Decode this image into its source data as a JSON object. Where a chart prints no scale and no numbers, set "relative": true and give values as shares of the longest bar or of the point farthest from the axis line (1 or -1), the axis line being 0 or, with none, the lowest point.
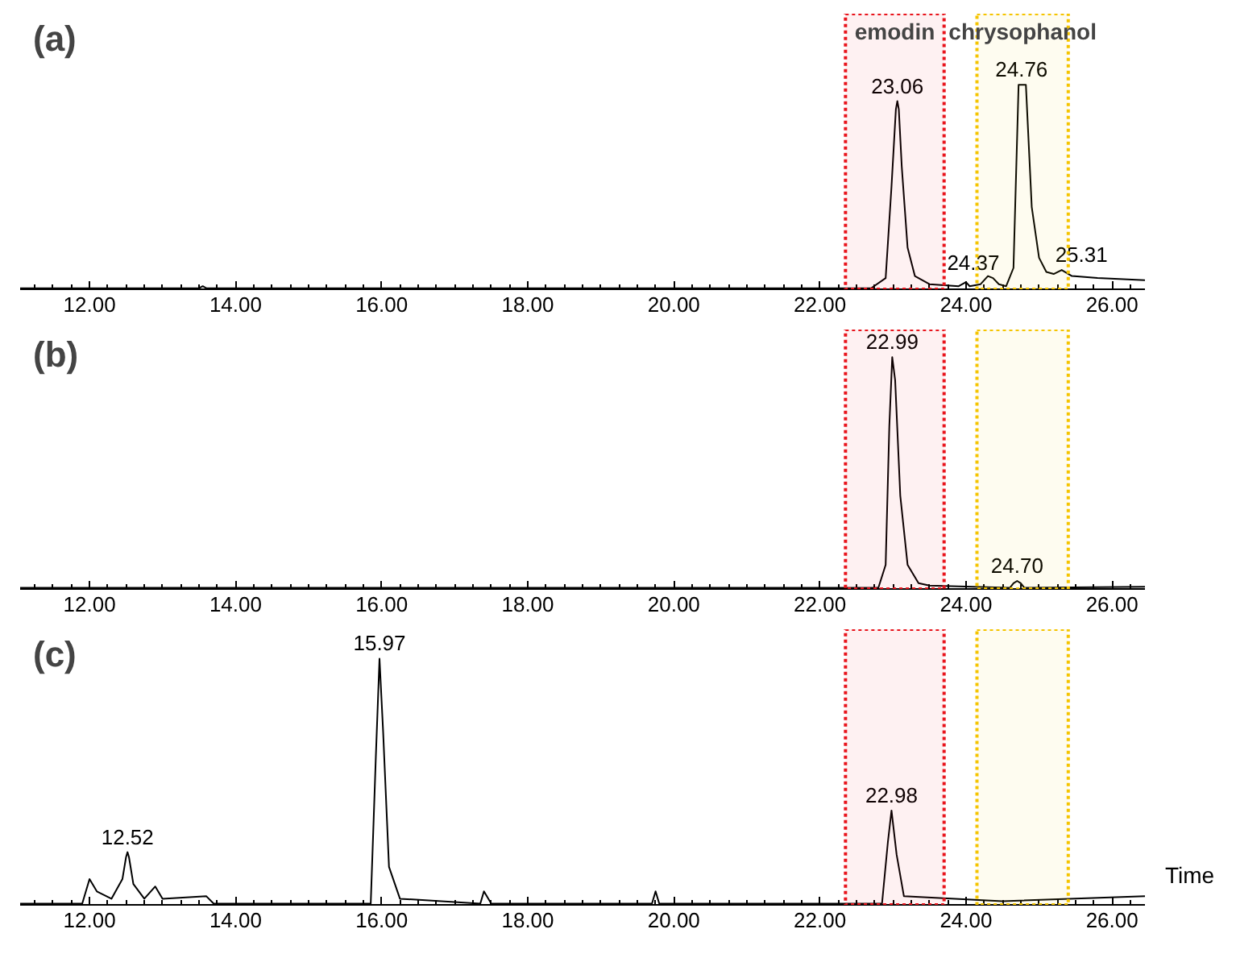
{
  "chart_data": [
    {
      "type": "line",
      "title": "(a)",
      "relative": true,
      "xlim": [
        11.05,
        26.45
      ],
      "xticks": [
        {
          "value": 12,
          "label": "12.00"
        },
        {
          "value": 14,
          "label": "14.00"
        },
        {
          "value": 16,
          "label": "16.00"
        },
        {
          "value": 18,
          "label": "18.00"
        },
        {
          "value": 20,
          "label": "20.00"
        },
        {
          "value": 22,
          "label": "22.00"
        },
        {
          "value": 24,
          "label": "24.00"
        },
        {
          "value": 26,
          "label": "26.00"
        }
      ],
      "grid": false,
      "series": [
        {
          "color": "#000000",
          "x": [
            11.05,
            13.5,
            13.55,
            13.6,
            22.7,
            22.9,
            22.98,
            23.04,
            23.06,
            23.08,
            23.12,
            23.2,
            23.3,
            23.5,
            23.9,
            24.0,
            24.05,
            24.2,
            24.3,
            24.37,
            24.45,
            24.55,
            24.65,
            24.72,
            24.82,
            24.9,
            25.0,
            25.1,
            25.2,
            25.31,
            25.45,
            25.8,
            26.45
          ],
          "values": [
            0,
            0,
            0.01,
            0,
            0,
            0.05,
            0.5,
            0.88,
            0.92,
            0.88,
            0.6,
            0.2,
            0.06,
            0.02,
            0.01,
            0.03,
            0.01,
            0.02,
            0.06,
            0.05,
            0.02,
            0.01,
            0.1,
            1.0,
            1.0,
            0.4,
            0.15,
            0.08,
            0.07,
            0.09,
            0.06,
            0.05,
            0.04
          ]
        }
      ],
      "annotations": [
        {
          "text": "23.06",
          "x": 23.06,
          "y": 0.92
        },
        {
          "text": "24.37",
          "x": 24.37,
          "y": 0.05
        },
        {
          "text": "24.76",
          "x": 24.76,
          "y": 1.0
        },
        {
          "text": "25.31",
          "x": 25.31,
          "y": 0.09
        }
      ],
      "bands": [
        {
          "axis": "x",
          "from": 22.35,
          "to": 23.7,
          "label": "emodin",
          "color": "#e8141c"
        },
        {
          "axis": "x",
          "from": 24.15,
          "to": 25.4,
          "label": "chrysophanol",
          "color": "#f5c400"
        }
      ]
    },
    {
      "type": "line",
      "title": "(b)",
      "relative": true,
      "xlim": [
        11.05,
        26.45
      ],
      "xticks": [
        {
          "value": 12,
          "label": "12.00"
        },
        {
          "value": 14,
          "label": "14.00"
        },
        {
          "value": 16,
          "label": "16.00"
        },
        {
          "value": 18,
          "label": "18.00"
        },
        {
          "value": 20,
          "label": "20.00"
        },
        {
          "value": 22,
          "label": "22.00"
        },
        {
          "value": 24,
          "label": "24.00"
        },
        {
          "value": 26,
          "label": "26.00"
        }
      ],
      "grid": false,
      "series": [
        {
          "color": "#000000",
          "x": [
            11.05,
            22.8,
            22.9,
            22.95,
            22.99,
            23.03,
            23.1,
            23.2,
            23.35,
            23.5,
            24.6,
            24.65,
            24.7,
            24.75,
            24.8,
            26.45
          ],
          "values": [
            0,
            0,
            0.1,
            0.7,
            1.0,
            0.9,
            0.4,
            0.1,
            0.02,
            0.01,
            0,
            0.02,
            0.03,
            0.02,
            0,
            0.005
          ]
        }
      ],
      "annotations": [
        {
          "text": "22.99",
          "x": 22.99,
          "y": 1.0
        },
        {
          "text": "24.70",
          "x": 24.7,
          "y": 0.03
        }
      ],
      "bands": [
        {
          "axis": "x",
          "from": 22.35,
          "to": 23.7,
          "color": "#e8141c"
        },
        {
          "axis": "x",
          "from": 24.15,
          "to": 25.4,
          "color": "#f5c400"
        }
      ]
    },
    {
      "type": "line",
      "title": "(c)",
      "relative": true,
      "xlabel": "Time",
      "xlim": [
        11.05,
        26.45
      ],
      "xticks": [
        {
          "value": 12,
          "label": "12.00"
        },
        {
          "value": 14,
          "label": "14.00"
        },
        {
          "value": 16,
          "label": "16.00"
        },
        {
          "value": 18,
          "label": "18.00"
        },
        {
          "value": 20,
          "label": "20.00"
        },
        {
          "value": 22,
          "label": "22.00"
        },
        {
          "value": 24,
          "label": "24.00"
        },
        {
          "value": 26,
          "label": "26.00"
        }
      ],
      "grid": false,
      "series": [
        {
          "color": "#000000",
          "x": [
            11.05,
            11.9,
            12.0,
            12.1,
            12.3,
            12.45,
            12.5,
            12.52,
            12.54,
            12.6,
            12.75,
            12.9,
            13.0,
            13.6,
            13.7,
            15.85,
            15.92,
            15.97,
            16.02,
            16.1,
            16.25,
            17.35,
            17.4,
            17.5,
            19.7,
            19.75,
            19.8,
            22.85,
            22.93,
            22.98,
            23.05,
            23.15,
            24.5,
            26.45
          ],
          "values": [
            0,
            0,
            0.1,
            0.05,
            0.02,
            0.1,
            0.19,
            0.21,
            0.19,
            0.08,
            0.02,
            0.07,
            0.02,
            0.03,
            0,
            0,
            0.6,
            1.0,
            0.7,
            0.15,
            0.02,
            0,
            0.05,
            0,
            0,
            0.05,
            0,
            0,
            0.25,
            0.38,
            0.2,
            0.03,
            0.01,
            0.03
          ]
        }
      ],
      "annotations": [
        {
          "text": "12.52",
          "x": 12.52,
          "y": 0.21
        },
        {
          "text": "15.97",
          "x": 15.97,
          "y": 1.0
        },
        {
          "text": "22.98",
          "x": 22.98,
          "y": 0.38
        }
      ],
      "bands": [
        {
          "axis": "x",
          "from": 22.35,
          "to": 23.7,
          "color": "#e8141c"
        },
        {
          "axis": "x",
          "from": 24.15,
          "to": 25.4,
          "color": "#f5c400"
        }
      ]
    }
  ]
}
